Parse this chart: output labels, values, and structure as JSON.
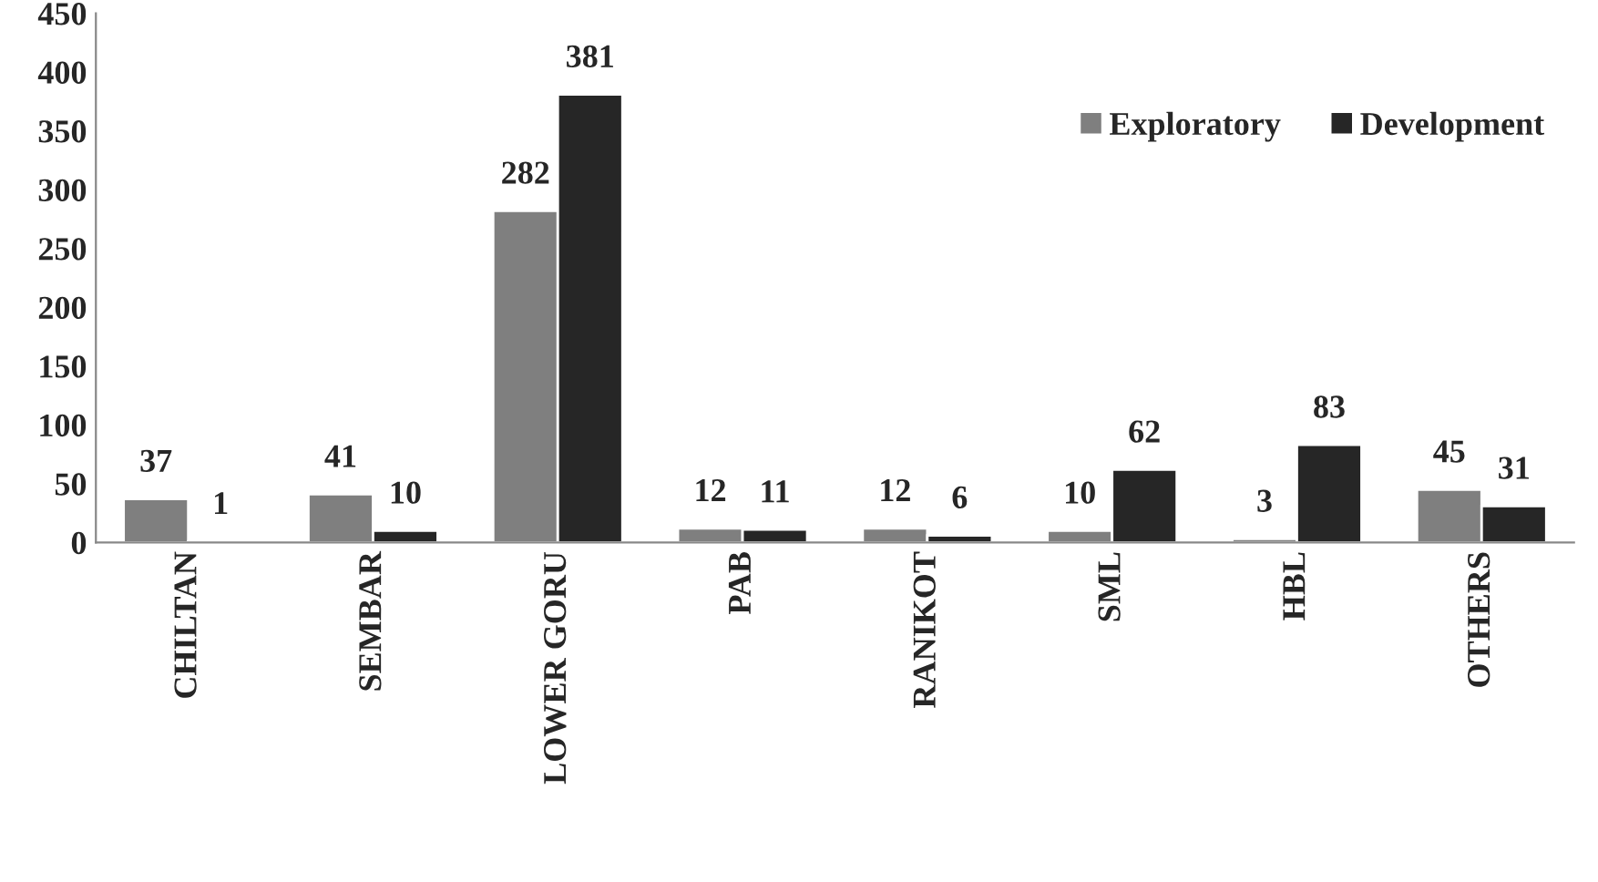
{
  "chart_data": {
    "type": "bar",
    "categories": [
      "CHILTAN",
      "SEMBAR",
      "LOWER GORU",
      "PAB",
      "RANIKOT",
      "SML",
      "HBL",
      "OTHERS"
    ],
    "series": [
      {
        "name": "Exploratory",
        "color": "#7f7f7f",
        "values": [
          37,
          41,
          282,
          12,
          12,
          10,
          3,
          45
        ]
      },
      {
        "name": "Development",
        "color": "#262626",
        "values": [
          1,
          10,
          381,
          11,
          6,
          62,
          83,
          31
        ]
      }
    ],
    "ylim": [
      0,
      450
    ],
    "yticks": [
      0,
      50,
      100,
      150,
      200,
      250,
      300,
      350,
      400,
      450
    ],
    "data_labels": true,
    "legend": "top right",
    "grid": false
  }
}
